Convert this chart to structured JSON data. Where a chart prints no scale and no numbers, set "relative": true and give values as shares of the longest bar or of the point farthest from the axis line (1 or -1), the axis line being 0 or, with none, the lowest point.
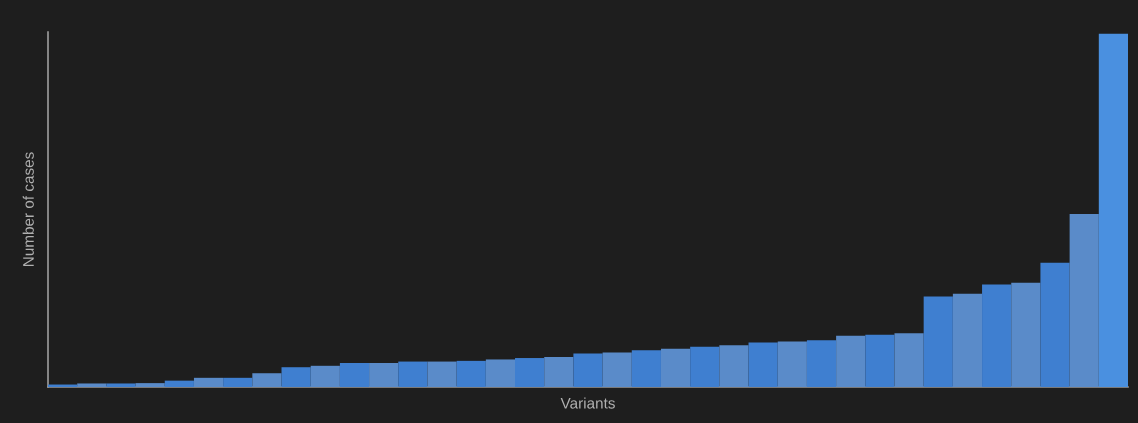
{
  "chart_data": {
    "type": "bar",
    "relative": true,
    "xlabel": "Variants",
    "ylabel": "Number of cases",
    "categories": [
      null,
      null,
      null,
      null,
      null,
      null,
      null,
      null,
      null,
      null,
      null,
      null,
      null,
      null,
      null,
      null,
      null,
      null,
      null,
      null,
      null,
      null,
      null,
      null,
      null,
      null,
      null,
      null,
      null,
      null,
      null,
      null,
      null,
      null,
      null,
      null,
      null
    ],
    "values": [
      0.007,
      0.01,
      0.01,
      0.011,
      0.018,
      0.026,
      0.026,
      0.039,
      0.056,
      0.06,
      0.068,
      0.068,
      0.072,
      0.072,
      0.074,
      0.078,
      0.082,
      0.085,
      0.095,
      0.098,
      0.104,
      0.108,
      0.114,
      0.118,
      0.126,
      0.129,
      0.132,
      0.145,
      0.148,
      0.152,
      0.256,
      0.264,
      0.29,
      0.295,
      0.352,
      0.49,
      1
    ],
    "colors": [
      "#3f7fd0",
      "#5a8bc9",
      "#3f7fd0",
      "#5a8bc9",
      "#3f7fd0",
      "#5a8bc9",
      "#3f7fd0",
      "#5a8bc9",
      "#3f7fd0",
      "#5a8bc9",
      "#3f7fd0",
      "#5a8bc9",
      "#3f7fd0",
      "#5a8bc9",
      "#3f7fd0",
      "#5a8bc9",
      "#3f7fd0",
      "#5a8bc9",
      "#3f7fd0",
      "#5a8bc9",
      "#3f7fd0",
      "#5a8bc9",
      "#3f7fd0",
      "#5a8bc9",
      "#3f7fd0",
      "#5a8bc9",
      "#3f7fd0",
      "#5a8bc9",
      "#3f7fd0",
      "#5a8bc9",
      "#3f7fd0",
      "#5a8bc9",
      "#3f7fd0",
      "#5a8bc9",
      "#3f7fd0",
      "#5a8bc9",
      "#4a90e0"
    ],
    "grid": false,
    "legend": false
  }
}
